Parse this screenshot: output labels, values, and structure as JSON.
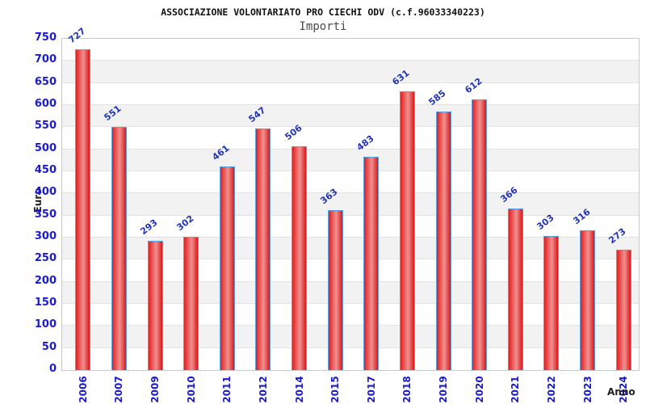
{
  "header": {
    "title": "ASSOCIAZIONE VOLONTARIATO PRO CIECHI ODV (c.f.96033340223)",
    "subtitle": "Importi"
  },
  "chart_data": {
    "type": "bar",
    "title": "ASSOCIAZIONE VOLONTARIATO PRO CIECHI ODV (c.f.96033340223)",
    "subtitle": "Importi",
    "xlabel": "Anno",
    "ylabel": "Euro",
    "categories": [
      "2006",
      "2007",
      "2009",
      "2010",
      "2011",
      "2012",
      "2014",
      "2015",
      "2017",
      "2018",
      "2019",
      "2020",
      "2021",
      "2022",
      "2023",
      "2024"
    ],
    "values": [
      727,
      551,
      293,
      302,
      461,
      547,
      506,
      363,
      483,
      631,
      585,
      612,
      366,
      303,
      316,
      273
    ],
    "ylim": [
      0,
      750
    ],
    "yticks": [
      750,
      700,
      650,
      600,
      550,
      500,
      450,
      400,
      350,
      300,
      250,
      200,
      150,
      100,
      50,
      0
    ],
    "grid": true,
    "legend_position": "none",
    "colors": {
      "bar_left": "#e02020",
      "bar_mid": "#f29090",
      "bar_right": "#d81818",
      "bar_border": "#5aa2e2",
      "axis_tick_text": "#1a1ad0",
      "value_label_text": "#2233bb",
      "stripe": "#f2f2f2",
      "gridline": "#e3e3e3",
      "plot_border": "#c9c9c9",
      "title_text": "#111111",
      "subtitle_text": "#4a4a4a",
      "axis_title_text": "#222222"
    }
  }
}
